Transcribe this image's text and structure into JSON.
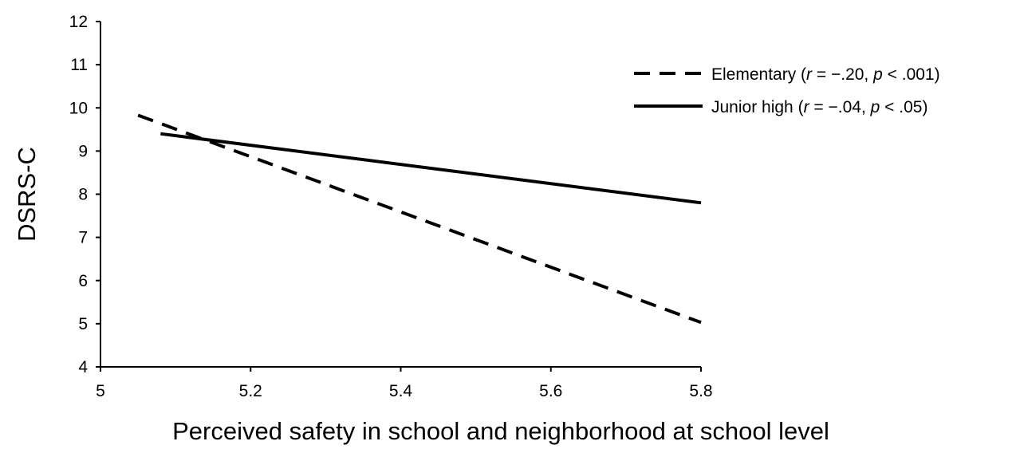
{
  "chart_data": {
    "type": "line",
    "xlabel": "Perceived safety in school and neighborhood at school level",
    "ylabel": "DSRS-C",
    "xlim": [
      5,
      5.8
    ],
    "ylim": [
      4,
      12
    ],
    "x_ticks": [
      "5",
      "5.2",
      "5.4",
      "5.6",
      "5.8"
    ],
    "y_ticks": [
      "4",
      "5",
      "6",
      "7",
      "8",
      "9",
      "10",
      "11",
      "12"
    ],
    "grid": false,
    "legend_position": "top-right",
    "series": [
      {
        "name": "Elementary",
        "legend_parts": [
          {
            "text": "Elementary (",
            "italic": false
          },
          {
            "text": "r",
            "italic": true
          },
          {
            "text": " = −.20, ",
            "italic": false
          },
          {
            "text": "p",
            "italic": true
          },
          {
            "text": " < .001)",
            "italic": false
          }
        ],
        "style": "dashed",
        "color": "#000000",
        "x": [
          5.05,
          5.8
        ],
        "y": [
          9.83,
          5.03
        ]
      },
      {
        "name": "Junior high",
        "legend_parts": [
          {
            "text": "Junior high (",
            "italic": false
          },
          {
            "text": "r",
            "italic": true
          },
          {
            "text": " = −.04, ",
            "italic": false
          },
          {
            "text": "p",
            "italic": true
          },
          {
            "text": " < .05)",
            "italic": false
          }
        ],
        "style": "solid",
        "color": "#000000",
        "x": [
          5.08,
          5.8
        ],
        "y": [
          9.4,
          7.8
        ]
      }
    ]
  }
}
